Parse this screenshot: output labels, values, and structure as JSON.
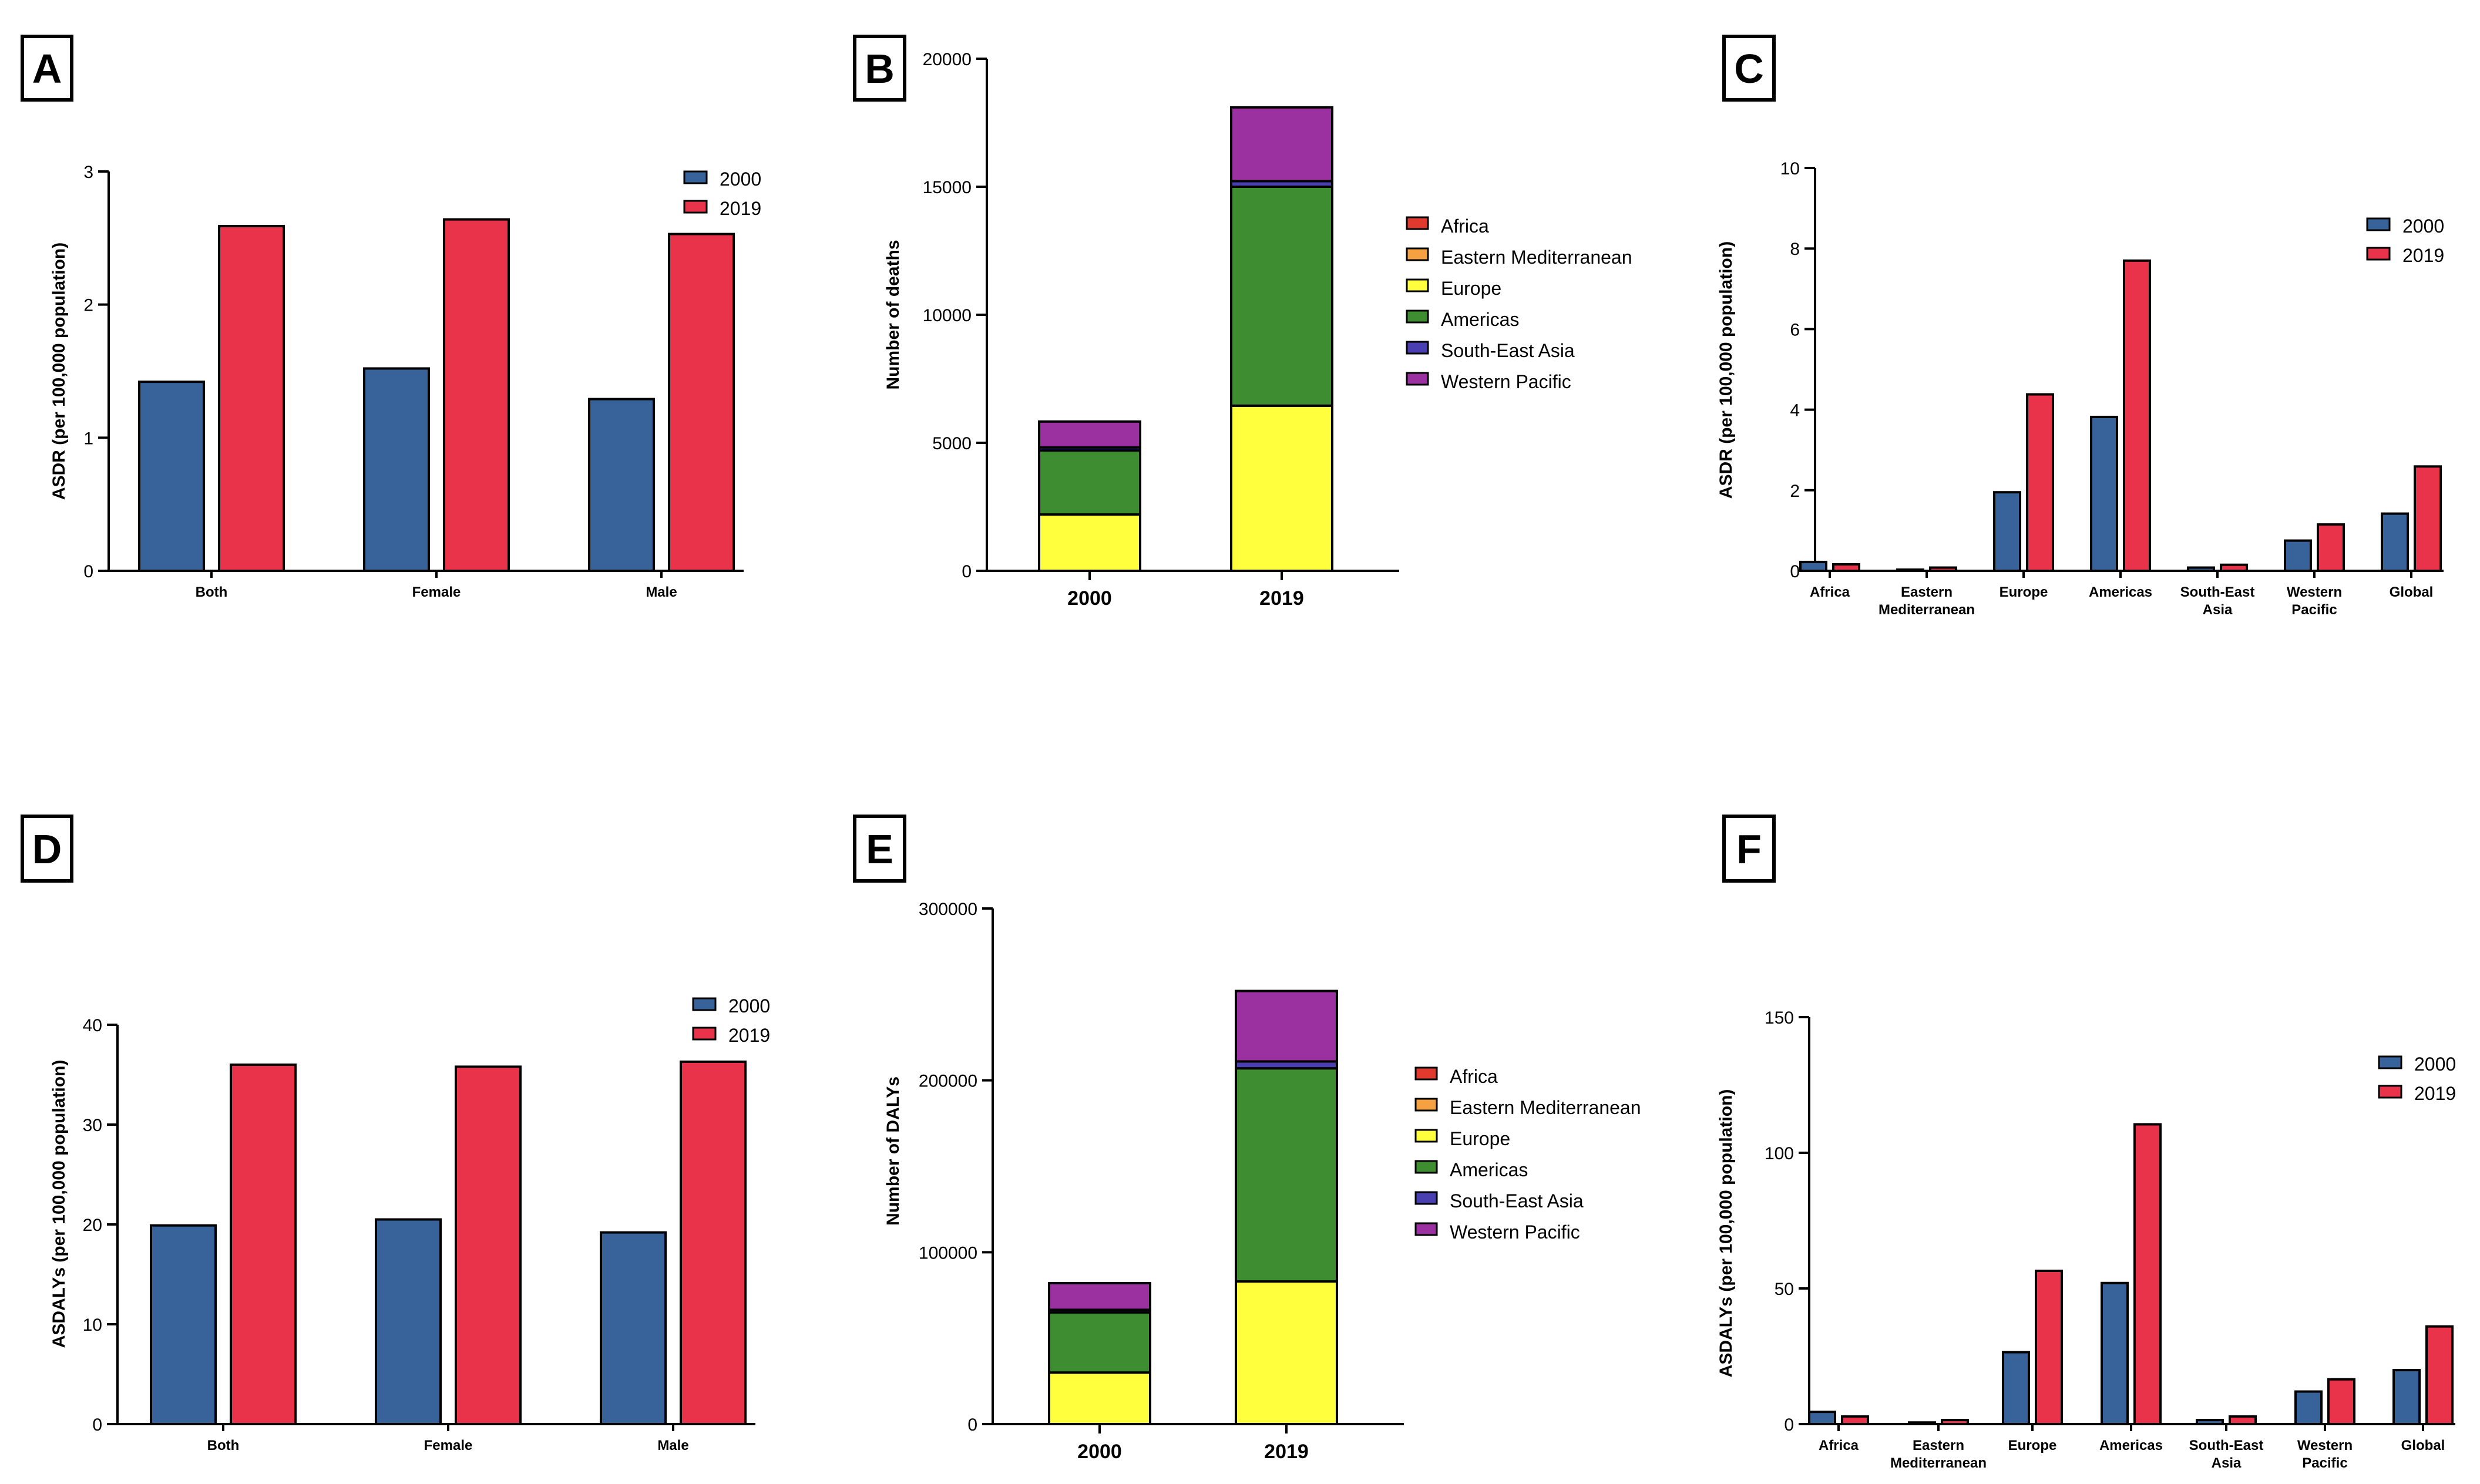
{
  "colors": {
    "y2000": "#37639a",
    "y2019": "#e8334b",
    "Africa": "#e03a2f",
    "Eastern Mediterranean": "#f5a142",
    "Europe": "#ffff3d",
    "Americas": "#3f8d31",
    "South-East Asia": "#4a3fb0",
    "Western Pacific": "#9b31a0"
  },
  "chart_data": [
    {
      "panel": "A",
      "type": "bar",
      "ylabel": "ASDR (per 100,000 population)",
      "ylim": [
        0,
        3
      ],
      "yticks": [
        "0",
        "1",
        "2",
        "3"
      ],
      "categories": [
        "Both",
        "Female",
        "Male"
      ],
      "series": [
        {
          "name": "2000",
          "values": [
            1.42,
            1.52,
            1.29
          ]
        },
        {
          "name": "2019",
          "values": [
            2.59,
            2.64,
            2.53
          ]
        }
      ],
      "legend": "top-right"
    },
    {
      "panel": "B",
      "type": "bar",
      "stacked": true,
      "ylabel": "Number of deaths",
      "ylim": [
        0,
        20000
      ],
      "yticks": [
        "0",
        "5000",
        "10000",
        "15000",
        "20000"
      ],
      "categories": [
        "2000",
        "2019"
      ],
      "series": [
        {
          "name": "Africa",
          "values": [
            0,
            0
          ]
        },
        {
          "name": "Eastern Mediterranean",
          "values": [
            0,
            0
          ]
        },
        {
          "name": "Europe",
          "values": [
            2200,
            6450
          ]
        },
        {
          "name": "Americas",
          "values": [
            2500,
            8550
          ]
        },
        {
          "name": "South-East Asia",
          "values": [
            120,
            220
          ]
        },
        {
          "name": "Western Pacific",
          "values": [
            1010,
            2880
          ]
        }
      ],
      "legend": "right"
    },
    {
      "panel": "C",
      "type": "bar",
      "ylabel": "ASDR (per 100,000 population)",
      "ylim": [
        0,
        10
      ],
      "yticks": [
        "0",
        "2",
        "4",
        "6",
        "8",
        "10"
      ],
      "categories": [
        "Africa",
        "Eastern\nMediterranean",
        "Europe",
        "Americas",
        "South-East\nAsia",
        "Western\nPacific",
        "Global"
      ],
      "series": [
        {
          "name": "2000",
          "values": [
            0.22,
            0.03,
            1.95,
            3.82,
            0.08,
            0.75,
            1.42
          ]
        },
        {
          "name": "2019",
          "values": [
            0.16,
            0.08,
            4.38,
            7.7,
            0.15,
            1.15,
            2.59
          ]
        }
      ],
      "legend": "top-right"
    },
    {
      "panel": "D",
      "type": "bar",
      "ylabel": "ASDALYs (per 100,000 population)",
      "ylim": [
        0,
        40
      ],
      "yticks": [
        "0",
        "10",
        "20",
        "30",
        "40"
      ],
      "categories": [
        "Both",
        "Female",
        "Male"
      ],
      "series": [
        {
          "name": "2000",
          "values": [
            19.9,
            20.5,
            19.2
          ]
        },
        {
          "name": "2019",
          "values": [
            36.0,
            35.8,
            36.3
          ]
        }
      ],
      "legend": "top-right"
    },
    {
      "panel": "E",
      "type": "bar",
      "stacked": true,
      "ylabel": "Number of DALYs",
      "ylim": [
        0,
        300000
      ],
      "yticks": [
        "0",
        "100000",
        "200000",
        "300000"
      ],
      "categories": [
        "2000",
        "2019"
      ],
      "series": [
        {
          "name": "Africa",
          "values": [
            0,
            0
          ]
        },
        {
          "name": "Eastern Mediterranean",
          "values": [
            0,
            0
          ]
        },
        {
          "name": "Europe",
          "values": [
            30000,
            83000
          ]
        },
        {
          "name": "Americas",
          "values": [
            35000,
            124000
          ]
        },
        {
          "name": "South-East Asia",
          "values": [
            1500,
            4000
          ]
        },
        {
          "name": "Western Pacific",
          "values": [
            15500,
            41000
          ]
        }
      ],
      "legend": "right"
    },
    {
      "panel": "F",
      "type": "bar",
      "ylabel": "ASDALYs (per 100,000 population)",
      "ylim": [
        0,
        150
      ],
      "yticks": [
        "0",
        "50",
        "100",
        "150"
      ],
      "categories": [
        "Africa",
        "Eastern\nMediterranean",
        "Europe",
        "Americas",
        "South-East\nAsia",
        "Western\nPacific",
        "Global"
      ],
      "series": [
        {
          "name": "2000",
          "values": [
            4.5,
            0.6,
            26.5,
            52.0,
            1.5,
            12.0,
            19.9
          ]
        },
        {
          "name": "2019",
          "values": [
            2.8,
            1.5,
            56.5,
            110.5,
            2.8,
            16.5,
            36.0
          ]
        }
      ],
      "legend": "top-right"
    }
  ]
}
